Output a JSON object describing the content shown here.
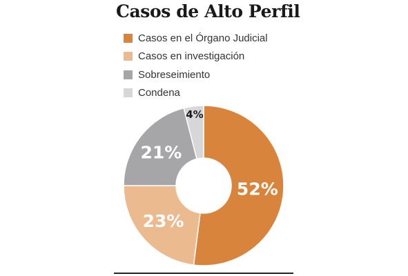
{
  "chart_data": {
    "type": "pie",
    "variant": "donut",
    "title": "Casos de Alto Perfil",
    "slices": [
      {
        "label": "Casos en el Órgano Judicial",
        "value": 52,
        "value_label": "52%",
        "color": "#d9843d"
      },
      {
        "label": "Casos en investigación",
        "value": 23,
        "value_label": "23%",
        "color": "#ebbb8f"
      },
      {
        "label": "Sobreseimiento",
        "value": 21,
        "value_label": "21%",
        "color": "#a6a6a8"
      },
      {
        "label": "Condena",
        "value": 4,
        "value_label": "4%",
        "color": "#d7d7d9"
      }
    ],
    "legend_position": "top-left",
    "start_angle_deg": 0,
    "direction": "clockwise"
  }
}
